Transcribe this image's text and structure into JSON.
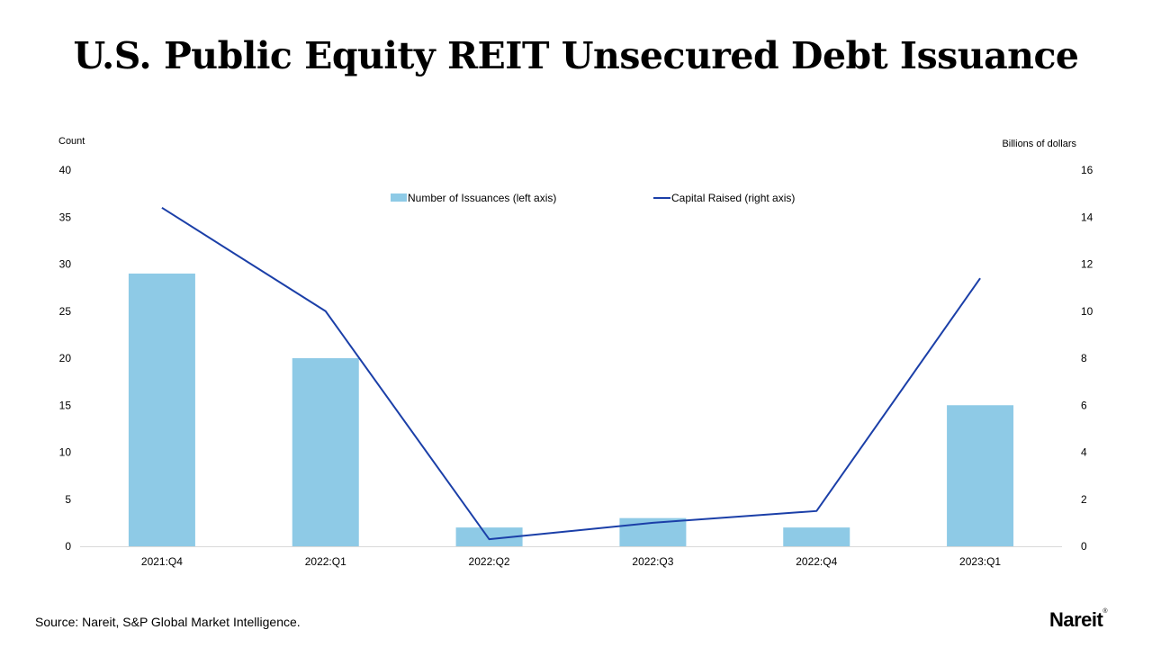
{
  "page": {
    "title": "U.S. Public Equity REIT Unsecured Debt Issuance",
    "source": "Source: Nareit, S&P Global Market Intelligence.",
    "logo": "Nareit"
  },
  "colors": {
    "bar": "#8ecae6",
    "line": "#1b3fa8",
    "axis_line": "#d9d9d9"
  },
  "chart_data": {
    "type": "bar",
    "categories": [
      "2021:Q4",
      "2022:Q1",
      "2022:Q2",
      "2022:Q3",
      "2022:Q4",
      "2023:Q1"
    ],
    "left_axis": {
      "label": "Count",
      "ylim": [
        0,
        40
      ],
      "ticks": [
        0,
        5,
        10,
        15,
        20,
        25,
        30,
        35,
        40
      ]
    },
    "right_axis": {
      "label": "Billions of dollars",
      "ylim": [
        0,
        16
      ],
      "ticks": [
        0,
        2,
        4,
        6,
        8,
        10,
        12,
        14,
        16
      ]
    },
    "series": [
      {
        "name": "Number of Issuances (left axis)",
        "type": "bar",
        "axis": "left",
        "values": [
          29,
          20,
          2,
          3,
          2,
          15
        ]
      },
      {
        "name": "Capital Raised (right axis)",
        "type": "line",
        "axis": "right",
        "values": [
          14.4,
          10.0,
          0.3,
          1.0,
          1.5,
          11.4
        ]
      }
    ],
    "legend_position": "top-center",
    "grid": false
  }
}
